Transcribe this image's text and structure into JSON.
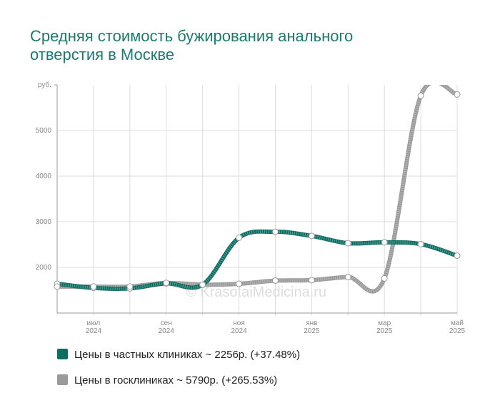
{
  "chart_data": {
    "type": "line",
    "title": [
      "Средняя стоимость бужирования анального",
      "отверстия в Москве"
    ],
    "watermark": "© KrasotaiMedicina.ru",
    "categories": [
      null,
      [
        "июл",
        "2024"
      ],
      null,
      [
        "сен",
        "2024"
      ],
      null,
      [
        "ноя",
        "2024"
      ],
      null,
      [
        "янв",
        "2025"
      ],
      null,
      [
        "мар",
        "2025"
      ],
      null,
      [
        "май",
        "2025"
      ]
    ],
    "series": [
      {
        "name": "Цены в частных клиниках ~ 2256р. (+37.48%)",
        "color": "#0e6e63",
        "values": [
          1640,
          1550,
          1540,
          1650,
          1620,
          2650,
          2780,
          2690,
          2530,
          2550,
          2510,
          2256
        ]
      },
      {
        "name": "Цены в госклиниках ~ 5790р. (+265.53%)",
        "color": "#9a9a9a",
        "values": [
          1580,
          1580,
          1580,
          1660,
          1620,
          1640,
          1710,
          1720,
          1790,
          1760,
          5760,
          5790
        ]
      }
    ],
    "ylim": [
      1000,
      6000
    ],
    "yticks": [
      2000,
      3000,
      4000,
      5000,
      {
        "value": 6000,
        "label": "руб."
      }
    ],
    "grid": true
  }
}
